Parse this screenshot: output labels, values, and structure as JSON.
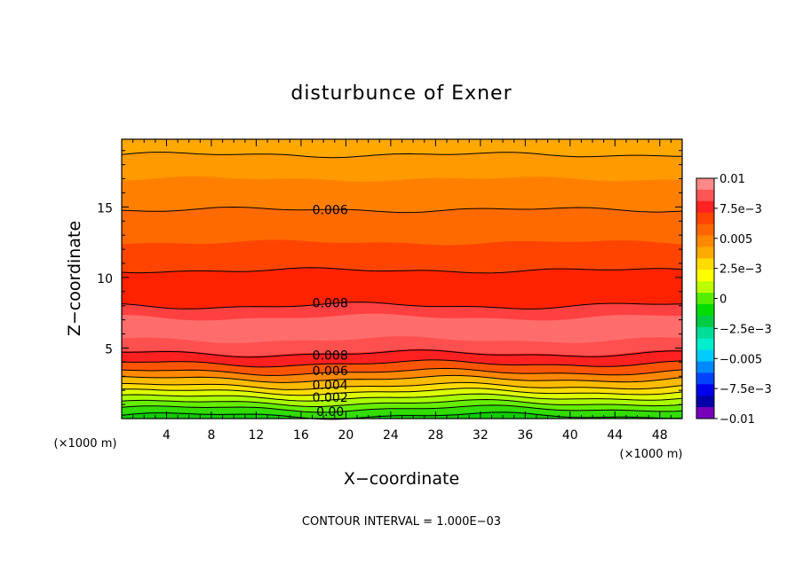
{
  "chart_data": {
    "type": "heatmap",
    "title": "disturbunce of Exner",
    "xlabel": "X−coordinate",
    "ylabel": "Z−coordinate",
    "x_unit_left": "(×1000 m)",
    "x_unit_right": "(×1000 m)",
    "xlim": [
      0,
      50
    ],
    "ylim": [
      0,
      19.8
    ],
    "x_ticks": [
      4,
      8,
      12,
      16,
      20,
      24,
      28,
      32,
      36,
      40,
      44,
      48
    ],
    "y_ticks": [
      5,
      10,
      15
    ],
    "grid": false,
    "footer": "CONTOUR INTERVAL = 1.000E−03",
    "colorbar": {
      "range": [
        -0.01,
        0.01
      ],
      "tick_values": [
        0.01,
        0.0075,
        0.005,
        0.0025,
        0,
        -0.0025,
        -0.005,
        -0.0075,
        -0.01
      ],
      "tick_labels": [
        "0.01",
        "7.5e−3",
        "0.005",
        "2.5e−3",
        "0",
        "−2.5e−3",
        "−0.005",
        "−7.5e−3",
        "−0.01"
      ],
      "colors": [
        "#ff8888",
        "#ff5555",
        "#ff2222",
        "#ff4400",
        "#ff6600",
        "#ff8800",
        "#ffaa00",
        "#ffdd00",
        "#ffff00",
        "#bbff00",
        "#55ee00",
        "#00dd00",
        "#00cc44",
        "#00dd99",
        "#00eecc",
        "#00ccff",
        "#0088ff",
        "#0044ff",
        "#0000ee",
        "#0000aa",
        "#7700bb"
      ]
    },
    "contour_levels": [
      0.0,
      0.001,
      0.002,
      0.003,
      0.004,
      0.005,
      0.006,
      0.007,
      0.008,
      0.009
    ],
    "contour_labels": [
      {
        "text": "0.006",
        "x": 18.6,
        "z": 14.8
      },
      {
        "text": "0.008",
        "x": 18.6,
        "z": 8.2
      },
      {
        "text": "0.008",
        "x": 18.6,
        "z": 4.5
      },
      {
        "text": "0.006",
        "x": 18.6,
        "z": 3.4
      },
      {
        "text": "0.004",
        "x": 18.6,
        "z": 2.4
      },
      {
        "text": "0.002",
        "x": 18.6,
        "z": 1.5
      },
      {
        "text": "0.00",
        "x": 18.6,
        "z": 0.5
      }
    ],
    "bands": [
      {
        "z": [
          0.0,
          0.3
        ],
        "value": 0.0,
        "color": "#11cc00"
      },
      {
        "z": [
          0.3,
          0.7
        ],
        "value": 0.0005,
        "color": "#33dd00"
      },
      {
        "z": [
          0.7,
          1.1
        ],
        "value": 0.0015,
        "color": "#66ee00"
      },
      {
        "z": [
          1.1,
          1.5
        ],
        "value": 0.0025,
        "color": "#aaff00"
      },
      {
        "z": [
          1.5,
          1.9
        ],
        "value": 0.0035,
        "color": "#ddff00"
      },
      {
        "z": [
          1.9,
          2.3
        ],
        "value": 0.0045,
        "color": "#ffdd00"
      },
      {
        "z": [
          2.3,
          2.8
        ],
        "value": 0.0055,
        "color": "#ffbb00"
      },
      {
        "z": [
          2.8,
          3.3
        ],
        "value": 0.0065,
        "color": "#ff8800"
      },
      {
        "z": [
          3.3,
          3.9
        ],
        "value": 0.0075,
        "color": "#ff5500"
      },
      {
        "z": [
          3.9,
          4.7
        ],
        "value": 0.0085,
        "color": "#ff2020"
      },
      {
        "z": [
          4.7,
          5.6
        ],
        "value": 0.009,
        "color": "#ff5050"
      },
      {
        "z": [
          5.6,
          7.2
        ],
        "value": 0.0095,
        "color": "#ff6c6c"
      },
      {
        "z": [
          7.2,
          8.0
        ],
        "value": 0.009,
        "color": "#ff4040"
      },
      {
        "z": [
          8.0,
          10.5
        ],
        "value": 0.0085,
        "color": "#ff2200"
      },
      {
        "z": [
          10.5,
          12.5
        ],
        "value": 0.0075,
        "color": "#ff4400"
      },
      {
        "z": [
          12.5,
          14.8
        ],
        "value": 0.0065,
        "color": "#ff6a00"
      },
      {
        "z": [
          14.8,
          17.0
        ],
        "value": 0.0058,
        "color": "#ff8000"
      },
      {
        "z": [
          17.0,
          18.7
        ],
        "value": 0.0052,
        "color": "#ff9a00"
      },
      {
        "z": [
          18.7,
          19.8
        ],
        "value": 0.005,
        "color": "#ffa800"
      }
    ],
    "contour_lines_z": [
      0.2,
      0.7,
      1.1,
      1.5,
      1.9,
      2.3,
      2.8,
      3.3,
      3.9,
      4.6,
      8.0,
      10.5,
      14.8,
      18.7
    ]
  }
}
